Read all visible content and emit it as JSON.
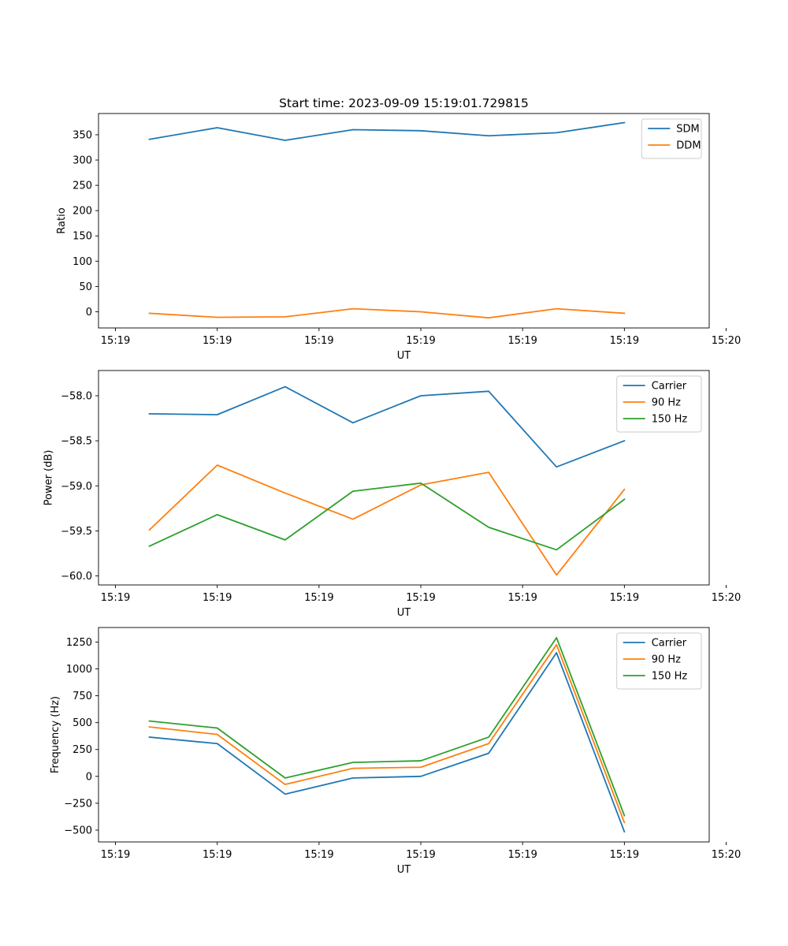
{
  "chart_data": [
    {
      "type": "line",
      "title": "Start time: 2023-09-09 15:19:01.729815",
      "xlabel": "UT",
      "ylabel": "Ratio",
      "xlim": [
        -0.25,
        8.75
      ],
      "ylim": [
        -32,
        392
      ],
      "x": [
        0.5,
        1.5,
        2.5,
        3.5,
        4.5,
        5.5,
        6.5,
        7.5
      ],
      "x_ticks": [
        0,
        1.5,
        3,
        4.5,
        6,
        7.5,
        9
      ],
      "x_tick_labels": [
        "15:19",
        "15:19",
        "15:19",
        "15:19",
        "15:19",
        "15:19",
        "15:20"
      ],
      "y_ticks": [
        0,
        50,
        100,
        150,
        200,
        250,
        300,
        350
      ],
      "y_tick_labels": [
        "0",
        "50",
        "100",
        "150",
        "200",
        "250",
        "300",
        "350"
      ],
      "legend": "top-right",
      "series": [
        {
          "name": "SDM",
          "color": "#1f77b4",
          "values": [
            341,
            364,
            339,
            360,
            358,
            348,
            354,
            374
          ]
        },
        {
          "name": "DDM",
          "color": "#ff7f0e",
          "values": [
            -3,
            -11,
            -10,
            6,
            0,
            -12,
            6,
            -3
          ]
        }
      ]
    },
    {
      "type": "line",
      "title": "",
      "xlabel": "UT",
      "ylabel": "Power (dB)",
      "xlim": [
        -0.25,
        8.75
      ],
      "ylim": [
        -60.1,
        -57.72
      ],
      "x": [
        0.5,
        1.5,
        2.5,
        3.5,
        4.5,
        5.5,
        6.5,
        7.5
      ],
      "x_ticks": [
        0,
        1.5,
        3,
        4.5,
        6,
        7.5,
        9
      ],
      "x_tick_labels": [
        "15:19",
        "15:19",
        "15:19",
        "15:19",
        "15:19",
        "15:19",
        "15:20"
      ],
      "y_ticks": [
        -60.0,
        -59.5,
        -59.0,
        -58.5,
        -58.0
      ],
      "y_tick_labels": [
        "−60.0",
        "−59.5",
        "−59.0",
        "−58.5",
        "−58.0"
      ],
      "legend": "top-right",
      "series": [
        {
          "name": "Carrier",
          "color": "#1f77b4",
          "values": [
            -58.2,
            -58.21,
            -57.9,
            -58.3,
            -58.0,
            -57.95,
            -58.79,
            -58.5
          ]
        },
        {
          "name": "90 Hz",
          "color": "#ff7f0e",
          "values": [
            -59.49,
            -58.77,
            -59.08,
            -59.37,
            -58.99,
            -58.85,
            -59.99,
            -59.04
          ]
        },
        {
          "name": "150 Hz",
          "color": "#2ca02c",
          "values": [
            -59.67,
            -59.32,
            -59.6,
            -59.06,
            -58.97,
            -59.46,
            -59.71,
            -59.15
          ]
        }
      ]
    },
    {
      "type": "line",
      "title": "",
      "xlabel": "UT",
      "ylabel": "Frequency (Hz)",
      "xlim": [
        -0.25,
        8.75
      ],
      "ylim": [
        -610,
        1385
      ],
      "x": [
        0.5,
        1.5,
        2.5,
        3.5,
        4.5,
        5.5,
        6.5,
        7.5
      ],
      "x_ticks": [
        0,
        1.5,
        3,
        4.5,
        6,
        7.5,
        9
      ],
      "x_tick_labels": [
        "15:19",
        "15:19",
        "15:19",
        "15:19",
        "15:19",
        "15:19",
        "15:20"
      ],
      "y_ticks": [
        -500,
        -250,
        0,
        250,
        500,
        750,
        1000,
        1250
      ],
      "y_tick_labels": [
        "−500",
        "−250",
        "0",
        "250",
        "500",
        "750",
        "1000",
        "1250"
      ],
      "legend": "top-right",
      "series": [
        {
          "name": "Carrier",
          "color": "#1f77b4",
          "values": [
            365,
            305,
            -165,
            -15,
            0,
            215,
            1150,
            -515
          ]
        },
        {
          "name": "90 Hz",
          "color": "#ff7f0e",
          "values": [
            460,
            390,
            -75,
            75,
            85,
            305,
            1225,
            -430
          ]
        },
        {
          "name": "150 Hz",
          "color": "#2ca02c",
          "values": [
            515,
            450,
            -15,
            130,
            145,
            365,
            1290,
            -365
          ]
        }
      ]
    }
  ]
}
